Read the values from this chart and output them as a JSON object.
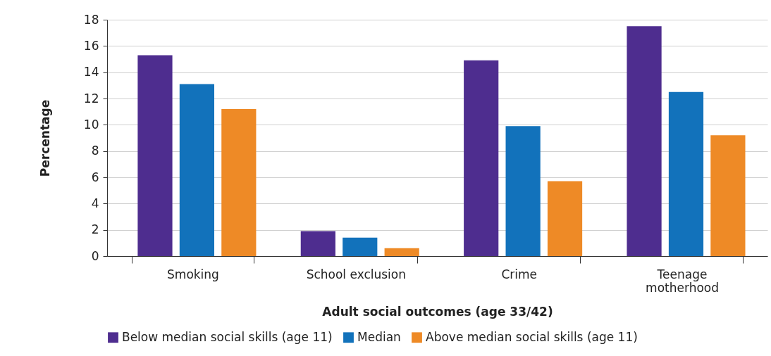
{
  "chart_data": {
    "type": "bar",
    "xlabel": "Adult social outcomes (age 33/42)",
    "ylabel": "Percentage",
    "categories": [
      "Smoking",
      "School exclusion",
      "Crime",
      "Teenage motherhood"
    ],
    "series": [
      {
        "name": "Below median social skills (age 11)",
        "color": "#4e2d8f",
        "values": [
          15.3,
          1.9,
          14.9,
          17.5
        ]
      },
      {
        "name": "Median",
        "color": "#1272bb",
        "values": [
          13.1,
          1.4,
          9.9,
          12.5
        ]
      },
      {
        "name": "Above median social skills (age 11)",
        "color": "#ee8a26",
        "values": [
          11.2,
          0.6,
          5.7,
          9.2
        ]
      }
    ],
    "ylim": [
      0,
      18
    ],
    "yticks": [
      0,
      2,
      4,
      6,
      8,
      10,
      12,
      14,
      16,
      18
    ],
    "grid": "y",
    "legend": "bottom"
  }
}
